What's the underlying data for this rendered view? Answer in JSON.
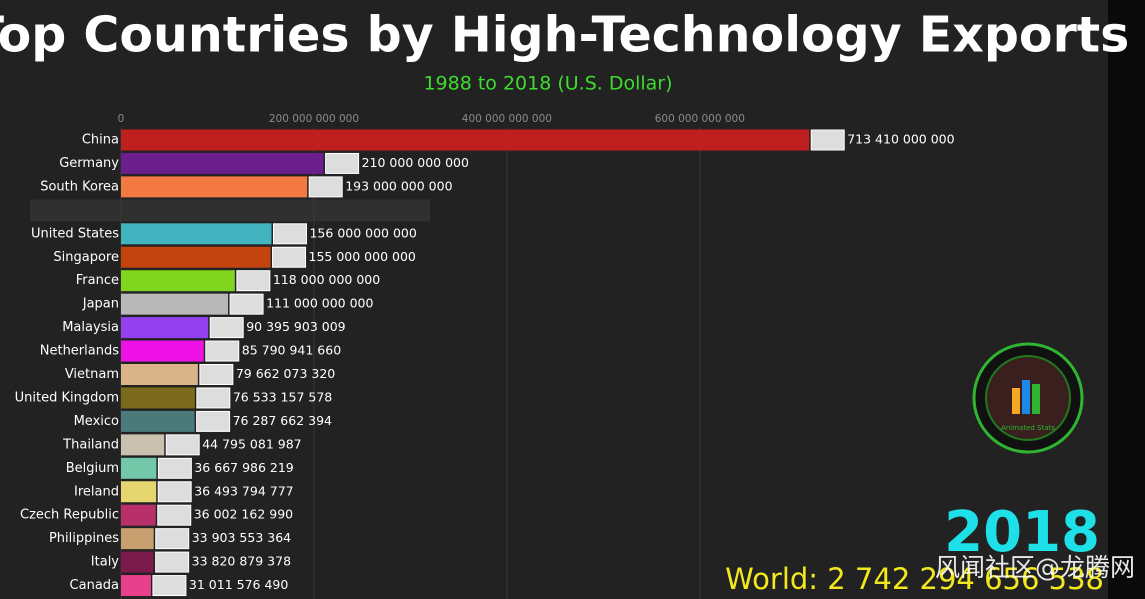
{
  "chart_data": {
    "type": "bar",
    "orientation": "horizontal",
    "title": "Top Countries by High-Technology Exports",
    "subtitle": "1988 to 2018 (U.S. Dollar)",
    "categories": [
      "China",
      "Germany",
      "South Korea",
      "United States",
      "Singapore",
      "France",
      "Japan",
      "Malaysia",
      "Netherlands",
      "Vietnam",
      "United Kingdom",
      "Mexico",
      "Thailand",
      "Belgium",
      "Ireland",
      "Czech Republic",
      "Philippines",
      "Italy",
      "Canada"
    ],
    "values": [
      713410000000,
      210000000000,
      193000000000,
      156000000000,
      155000000000,
      118000000000,
      111000000000,
      90395903009,
      85790941660,
      79662073320,
      76533157578,
      76287662394,
      44795081987,
      36667986219,
      36493794777,
      36002162990,
      33903553364,
      33820879378,
      31011576490
    ],
    "value_labels": [
      "713 410 000 000",
      "210 000 000 000",
      "193 000 000 000",
      "156 000 000 000",
      "155 000 000 000",
      "118 000 000 000",
      "111 000 000 000",
      "90 395 903 009",
      "85 790 941 660",
      "79 662 073 320",
      "76 533 157 578",
      "76 287 662 394",
      "44 795 081 987",
      "36 667 986 219",
      "36 493 794 777",
      "36 002 162 990",
      "33 903 553 364",
      "33 820 879 378",
      "31 011 576 490"
    ],
    "colors": [
      "#c01f1f",
      "#6a1f8c",
      "#f27a42",
      "#41b4c0",
      "#c4440f",
      "#80d61e",
      "#b8b8b8",
      "#9440f0",
      "#ee12e6",
      "#d9b38a",
      "#7b6a1b",
      "#4a7a7a",
      "#c9c0b0",
      "#72c8a8",
      "#e6d670",
      "#b8306a",
      "#c8a070",
      "#7a1a4a",
      "#e8408a"
    ],
    "xlim": [
      0,
      1020000000000
    ],
    "xticks": [
      0,
      {
        "value": 200000000000,
        "label": "200 000 000 000"
      },
      {
        "value": 400000000000,
        "label": "400 000 000 000"
      },
      {
        "value": 600000000000,
        "label": "600 000 000 000"
      }
    ],
    "grid": true,
    "year": "2018",
    "world_total": "World: 2 742 294 656 538",
    "logo_text": "Animated Stats",
    "watermark": "风闻社区@龙腾网"
  }
}
